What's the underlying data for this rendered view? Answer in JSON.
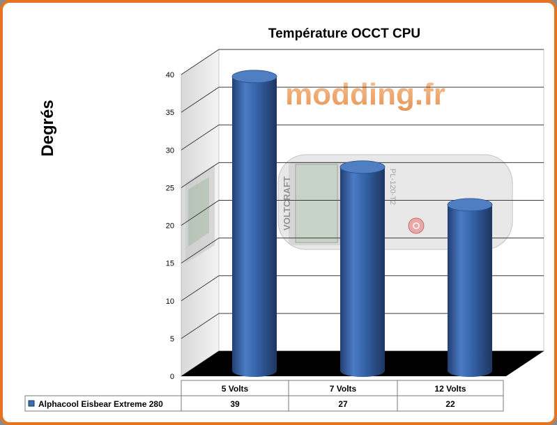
{
  "chart_data": {
    "type": "bar",
    "title": "Température OCCT CPU",
    "ylabel": "Degrés",
    "xlabel": "",
    "categories": [
      "5 Volts",
      "7 Volts",
      "12 Volts"
    ],
    "series": [
      {
        "name": "Alphacool Eisbear Extreme 280",
        "values": [
          39,
          27,
          22
        ],
        "color": "#3c6cb4"
      }
    ],
    "ylim": [
      0,
      40
    ],
    "yticks": [
      0,
      5,
      10,
      15,
      20,
      25,
      30,
      35,
      40
    ],
    "grid": true,
    "legend": "data-table-below",
    "style": "3d-cylinder"
  },
  "watermark": {
    "text": "modding.fr"
  },
  "background_photo": {
    "brand": "VOLTCRAFT",
    "model": "PL-120-T2"
  }
}
